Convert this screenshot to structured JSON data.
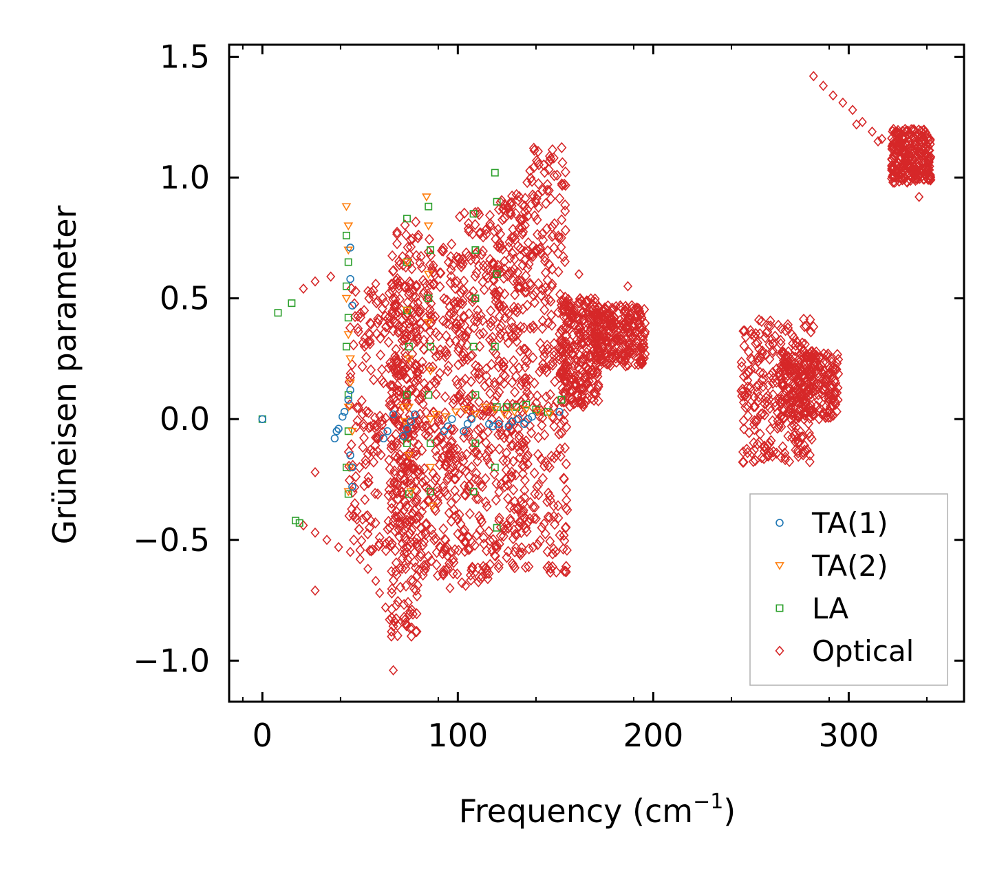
{
  "chart_data": {
    "type": "scatter",
    "title": "",
    "xlabel": "Frequency (cm",
    "xlabel_sup": "−1",
    "xlabel_end": ")",
    "ylabel": "Grüneisen parameter",
    "xlim": [
      -17,
      359
    ],
    "ylim": [
      -1.17,
      1.55
    ],
    "xticks": [
      0,
      100,
      200,
      300
    ],
    "xtick_labels": [
      "0",
      "100",
      "200",
      "300"
    ],
    "yticks": [
      -1.0,
      -0.5,
      0.0,
      0.5,
      1.0,
      1.5
    ],
    "ytick_labels": [
      "−1.0",
      "−0.5",
      "0.0",
      "0.5",
      "1.0",
      "1.5"
    ],
    "legend_position": "lower-right",
    "series": [
      {
        "name": "TA(1)",
        "marker": "circle",
        "color": "#1f77b4",
        "points": [
          [
            0,
            0
          ],
          [
            37,
            -0.08
          ],
          [
            38,
            -0.05
          ],
          [
            39,
            -0.04
          ],
          [
            41,
            0.01
          ],
          [
            42,
            0.03
          ],
          [
            44,
            0.08
          ],
          [
            45,
            0.12
          ],
          [
            45,
            0.58
          ],
          [
            45,
            0.71
          ],
          [
            46,
            0.47
          ],
          [
            45,
            -0.15
          ],
          [
            46,
            -0.2
          ],
          [
            46,
            -0.28
          ],
          [
            62,
            -0.08
          ],
          [
            64,
            -0.05
          ],
          [
            67,
            0.02
          ],
          [
            72,
            -0.07
          ],
          [
            74,
            -0.04
          ],
          [
            76,
            -0.01
          ],
          [
            78,
            0.02
          ],
          [
            93,
            -0.05
          ],
          [
            95,
            -0.03
          ],
          [
            97,
            0
          ],
          [
            103,
            -0.05
          ],
          [
            105,
            -0.02
          ],
          [
            107,
            0
          ],
          [
            116,
            -0.02
          ],
          [
            118,
            -0.03
          ],
          [
            121,
            -0.02
          ],
          [
            126,
            -0.03
          ],
          [
            128,
            -0.01
          ],
          [
            131,
            0
          ],
          [
            134,
            -0.02
          ],
          [
            136,
            0
          ],
          [
            138,
            0.01
          ],
          [
            152,
            0.03
          ]
        ]
      },
      {
        "name": "TA(2)",
        "marker": "triangle-down",
        "color": "#ff7f0e",
        "points": [
          [
            43,
            0.88
          ],
          [
            44,
            0.8
          ],
          [
            44,
            0.7
          ],
          [
            43,
            0.5
          ],
          [
            44,
            0.35
          ],
          [
            45,
            0.25
          ],
          [
            45,
            0.15
          ],
          [
            44,
            0.05
          ],
          [
            46,
            -0.05
          ],
          [
            45,
            -0.2
          ],
          [
            44,
            -0.3
          ],
          [
            72,
            0.05
          ],
          [
            74,
            0.65
          ],
          [
            74,
            0.45
          ],
          [
            75,
            0.25
          ],
          [
            75,
            0.05
          ],
          [
            75,
            -0.15
          ],
          [
            76,
            -0.3
          ],
          [
            73,
            -0.01
          ],
          [
            84,
            0.92
          ],
          [
            85,
            0.8
          ],
          [
            85,
            0.6
          ],
          [
            85,
            0.4
          ],
          [
            86,
            0.2
          ],
          [
            86,
            0
          ],
          [
            86,
            -0.2
          ],
          [
            87,
            -0.36
          ],
          [
            89,
            0.02
          ],
          [
            94,
            0.01
          ],
          [
            99,
            0.03
          ],
          [
            104,
            0.04
          ],
          [
            109,
            0.02
          ],
          [
            114,
            0.05
          ],
          [
            119,
            0.04
          ],
          [
            124,
            0.02
          ],
          [
            129,
            0.03
          ],
          [
            135,
            0.04
          ],
          [
            141,
            0.03
          ],
          [
            147,
            0.02
          ]
        ]
      },
      {
        "name": "LA",
        "marker": "square",
        "color": "#2ca02c",
        "points": [
          [
            0,
            0
          ],
          [
            8,
            0.44
          ],
          [
            15,
            0.48
          ],
          [
            17,
            -0.42
          ],
          [
            19,
            -0.43
          ],
          [
            43,
            0.76
          ],
          [
            44,
            0.65
          ],
          [
            43,
            0.55
          ],
          [
            44,
            0.42
          ],
          [
            43,
            0.3
          ],
          [
            44,
            0.1
          ],
          [
            44,
            -0.05
          ],
          [
            43,
            -0.2
          ],
          [
            44,
            -0.31
          ],
          [
            74,
            0.83
          ],
          [
            74,
            0.65
          ],
          [
            74,
            0.45
          ],
          [
            75,
            0.3
          ],
          [
            74,
            0.1
          ],
          [
            74,
            -0.1
          ],
          [
            75,
            -0.31
          ],
          [
            85,
            0.88
          ],
          [
            86,
            0.7
          ],
          [
            85,
            0.5
          ],
          [
            86,
            0.3
          ],
          [
            85,
            0.1
          ],
          [
            86,
            -0.1
          ],
          [
            86,
            -0.3
          ],
          [
            108,
            0.85
          ],
          [
            109,
            0.7
          ],
          [
            109,
            0.5
          ],
          [
            108,
            0.3
          ],
          [
            109,
            0.1
          ],
          [
            109,
            -0.1
          ],
          [
            108,
            -0.3
          ],
          [
            119,
            1.02
          ],
          [
            120,
            0.9
          ],
          [
            120,
            0.6
          ],
          [
            119,
            0.3
          ],
          [
            120,
            0.05
          ],
          [
            119,
            -0.2
          ],
          [
            120,
            -0.45
          ],
          [
            125,
            0.05
          ],
          [
            130,
            0.05
          ],
          [
            135,
            0.06
          ],
          [
            140,
            0.04
          ],
          [
            146,
            0.03
          ],
          [
            153,
            0.08
          ]
        ]
      },
      {
        "name": "Optical",
        "marker": "diamond",
        "color": "#d62728",
        "points": [
          [
            21,
            0.54
          ],
          [
            27,
            0.57
          ],
          [
            35,
            0.59
          ],
          [
            21,
            -0.44
          ],
          [
            27,
            -0.47
          ],
          [
            33,
            -0.5
          ],
          [
            39,
            -0.53
          ],
          [
            45,
            -0.55
          ],
          [
            50,
            -0.58
          ],
          [
            54,
            -0.62
          ],
          [
            58,
            -0.67
          ],
          [
            60,
            -0.72
          ],
          [
            63,
            -0.78
          ],
          [
            65,
            -0.83
          ],
          [
            66,
            -0.88
          ],
          [
            67,
            -1.04
          ],
          [
            66,
            -0.9
          ],
          [
            27,
            -0.22
          ],
          [
            27,
            -0.71
          ],
          [
            54,
            0.53
          ],
          [
            58,
            0.56
          ],
          [
            66,
            0.56
          ],
          [
            66,
            -0.63
          ],
          [
            96,
            -0.7
          ],
          [
            104,
            -0.69
          ],
          [
            162,
            0.6
          ],
          [
            187,
            0.55
          ],
          [
            168,
            0.45
          ],
          [
            173,
            0.43
          ],
          [
            178,
            0.42
          ],
          [
            183,
            0.41
          ],
          [
            188,
            0.4
          ],
          [
            193,
            0.38
          ],
          [
            282,
            1.42
          ],
          [
            287,
            1.38
          ],
          [
            292,
            1.34
          ],
          [
            297,
            1.31
          ],
          [
            302,
            1.28
          ],
          [
            307,
            1.23
          ],
          [
            312,
            1.19
          ],
          [
            317,
            1.16
          ],
          [
            322,
            1.13
          ],
          [
            327,
            1.18
          ],
          [
            332,
            1.2
          ],
          [
            337,
            1.1
          ],
          [
            342,
            1.0
          ],
          [
            336,
            0.92
          ],
          [
            325,
            1.05
          ],
          [
            315,
            1.15
          ],
          [
            304,
            1.22
          ]
        ],
        "clusters": [
          {
            "x": [
              44,
              80
            ],
            "y": [
              -0.55,
              0.55
            ]
          },
          {
            "x": [
              66,
              80
            ],
            "y": [
              -0.9,
              0.82
            ]
          },
          {
            "x": [
              80,
              100
            ],
            "y": [
              -0.65,
              0.75
            ]
          },
          {
            "x": [
              100,
              120
            ],
            "y": [
              -0.68,
              0.86
            ]
          },
          {
            "x": [
              120,
              135
            ],
            "y": [
              -0.62,
              0.93
            ]
          },
          {
            "x": [
              135,
              156
            ],
            "y": [
              -0.64,
              1.13
            ]
          },
          {
            "x": [
              152,
              172
            ],
            "y": [
              0.05,
              0.5
            ]
          },
          {
            "x": [
              170,
              196
            ],
            "y": [
              0.22,
              0.47
            ]
          },
          {
            "x": [
              245,
              282
            ],
            "y": [
              -0.18,
              0.42
            ]
          },
          {
            "x": [
              265,
              295
            ],
            "y": [
              0.0,
              0.28
            ]
          },
          {
            "x": [
              322,
              342
            ],
            "y": [
              0.98,
              1.2
            ]
          }
        ]
      }
    ]
  }
}
